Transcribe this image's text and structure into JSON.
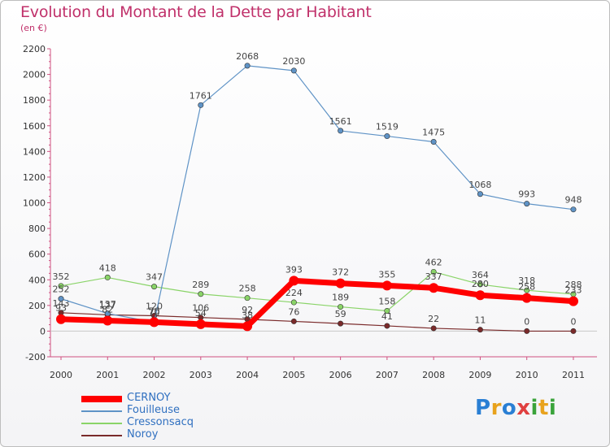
{
  "title": "Evolution du Montant de la Dette par Habitant",
  "subtitle": "(en €)",
  "logo": {
    "text": "Proxiti",
    "letters": [
      "P",
      "r",
      "o",
      "x",
      "i",
      "t",
      "i"
    ],
    "colors": [
      "#2a7fd4",
      "#e8a21d",
      "#2a7fd4",
      "#e04040",
      "#3aa33a",
      "#e8a21d",
      "#3aa33a"
    ]
  },
  "chart_data": {
    "type": "line",
    "title": "Evolution du Montant de la Dette par Habitant",
    "subtitle": "(en €)",
    "x": [
      "2000",
      "2001",
      "2002",
      "2003",
      "2004",
      "2005",
      "2006",
      "2007",
      "2008",
      "2009",
      "2010",
      "2011"
    ],
    "ylim": [
      -200,
      2200
    ],
    "yticks": [
      -200,
      0,
      200,
      400,
      600,
      800,
      1000,
      1200,
      1400,
      1600,
      1800,
      2000,
      2200
    ],
    "grid": false,
    "legend_position": "bottom-left",
    "series": [
      {
        "name": "CERNOY",
        "color": "#ff0000",
        "values": [
          93,
          82,
          70,
          54,
          38,
          393,
          372,
          355,
          337,
          280,
          258,
          233
        ]
      },
      {
        "name": "Fouilleuse",
        "color": "#5f93c6",
        "values": [
          252,
          137,
          70,
          1761,
          2068,
          2030,
          1561,
          1519,
          1475,
          1068,
          993,
          948
        ]
      },
      {
        "name": "Cressonsacq",
        "color": "#8ad468",
        "values": [
          352,
          418,
          347,
          289,
          258,
          224,
          189,
          158,
          462,
          364,
          318,
          288
        ]
      },
      {
        "name": "Noroy",
        "color": "#7a2a2a",
        "values": [
          143,
          127,
          120,
          106,
          92,
          76,
          59,
          41,
          22,
          11,
          0,
          0
        ]
      }
    ]
  }
}
